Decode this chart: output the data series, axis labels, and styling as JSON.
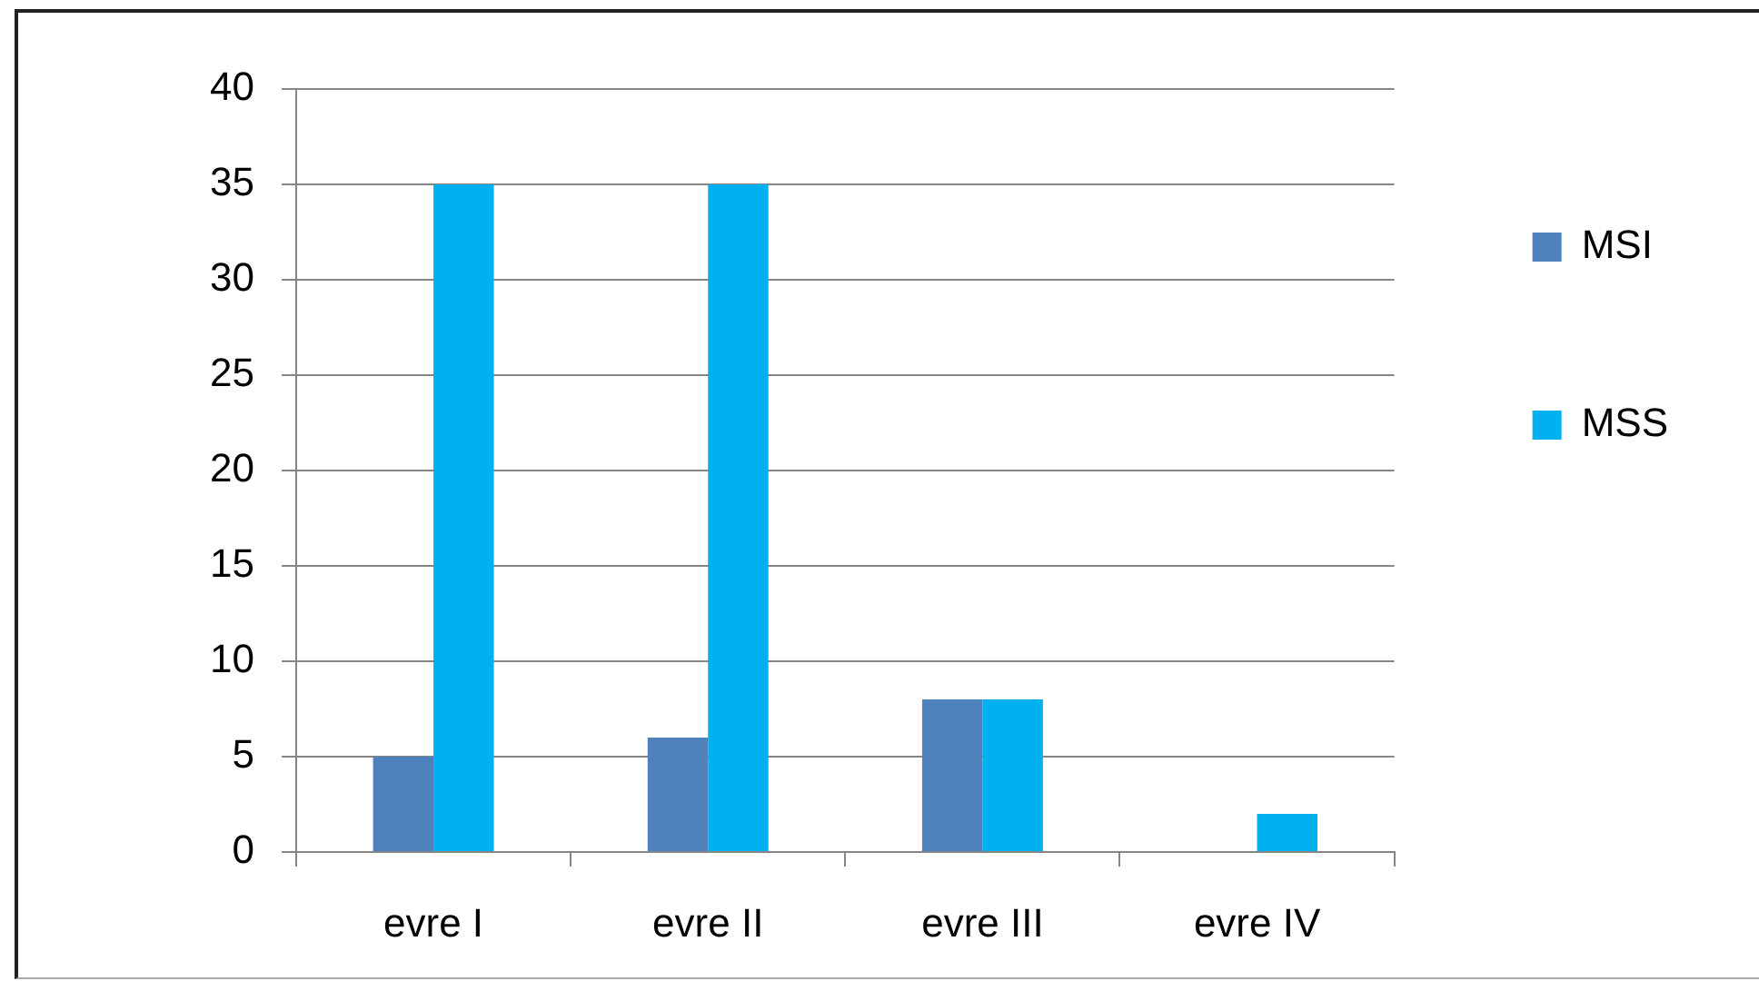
{
  "chart_data": {
    "type": "bar",
    "categories": [
      "evre I",
      "evre II",
      "evre III",
      "evre IV"
    ],
    "series": [
      {
        "name": "MSI",
        "color": "#4f81bd",
        "values": [
          5,
          6,
          8,
          0
        ]
      },
      {
        "name": "MSS",
        "color": "#00b0f0",
        "values": [
          35,
          35,
          8,
          2
        ]
      }
    ],
    "ylim": [
      0,
      40
    ],
    "yticks": [
      0,
      5,
      10,
      15,
      20,
      25,
      30,
      35,
      40
    ],
    "grid": "y",
    "legend": "right"
  }
}
